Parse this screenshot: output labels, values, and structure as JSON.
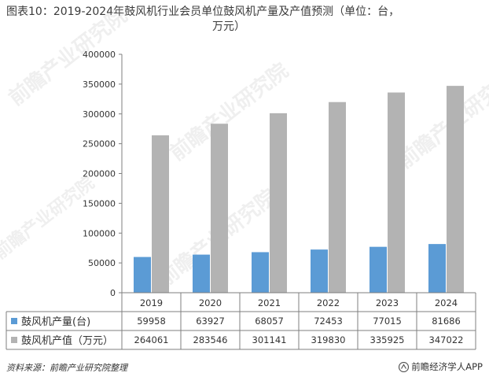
{
  "title_line1": "图表10：2019-2024年鼓风机行业会员单位鼓风机产量及产值预测（单位：台，",
  "title_line2": "万元）",
  "source": "资料来源：前瞻产业研究院整理",
  "brand": "前瞻经济学人APP",
  "watermark": "前瞻产业研究院",
  "colors": {
    "production": "#5b9bd5",
    "value": "#b3b3b3"
  },
  "chart_data": {
    "type": "bar",
    "title": "图表10：2019-2024年鼓风机行业会员单位鼓风机产量及产值预测（单位：台，万元）",
    "categories": [
      "2019",
      "2020",
      "2021",
      "2022",
      "2023",
      "2024"
    ],
    "series": [
      {
        "name": "鼓风机产量(台)",
        "values": [
          59958,
          63927,
          68057,
          72453,
          77015,
          81686
        ]
      },
      {
        "name": "鼓风机产值（万元）",
        "values": [
          264061,
          283546,
          301141,
          319830,
          335925,
          347022
        ]
      }
    ],
    "ylim": [
      0,
      400000
    ],
    "yticks": [
      "0",
      "50000",
      "100000",
      "150000",
      "200000",
      "250000",
      "300000",
      "350000",
      "400000"
    ],
    "legend": "data-table-below",
    "grid": false
  }
}
